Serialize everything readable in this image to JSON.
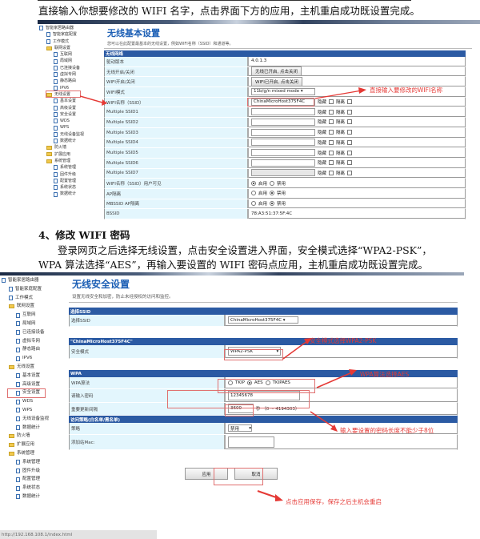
{
  "doc": {
    "line1": "直接输入你想要修改的 WIFI 名字，点击界面下方的应用，主机重启成功既设置完成。",
    "heading4": "4、修改 WIFI 密码",
    "para1": "登录网页之后选择无线设置，点击安全设置进入界面，安全模式选择“WPA2-PSK”，",
    "para2": "WPA 算法选择“AES”，再输入要设置的 WIFI 密码点应用，主机重启成功既设置完成。"
  },
  "tree": [
    "智能家居路由器",
    "智能家庭配置",
    "工作模式",
    "联网设置",
    "互联网",
    "局域网",
    "已连接设备",
    "虚拟专网",
    "静态路由",
    "IPV6",
    "无线设置",
    "基本设置",
    "高级设置",
    "安全设置",
    "WDS",
    "WPS",
    "无线设备监视",
    "数据统计",
    "防火墙",
    "扩展应用",
    "系统管理",
    "系统管理",
    "固件升级",
    "配置管理",
    "系统状态",
    "数据统计"
  ],
  "basic": {
    "title": "无线基本设置",
    "desc": "您可以在此配置最基本的无线设置，例如WIFI名称（SSID）和通道等。",
    "section": "无线网络",
    "driver_label": "驱动版本",
    "driver_value": "4.0.1.3",
    "radio_label": "无线开启/关闭",
    "radio_button": "无线已开启, 点击关闭",
    "wifi_label": "WIFI开启/关闭",
    "wifi_button": "WIFI已开启, 点击关闭",
    "mode_label": "WIFI模式",
    "mode_value": "11b/g/n mixed mode",
    "ssid_label": "WIFI名称（SSID）",
    "ssid_value": "ChinaMicroHost375F4C",
    "hide": "隐藏",
    "isolate": "隔离",
    "multi": [
      "Multiple SSID1",
      "Multiple SSID2",
      "Multiple SSID3",
      "Multiple SSID4",
      "Multiple SSID5",
      "Multiple SSID6",
      "Multiple SSID7"
    ],
    "visible_label": "WIFI名称（SSID）用户可见",
    "ap_label": "AP隔离",
    "mbssid_label": "MBSSID AP隔离",
    "enable": "启用",
    "disable": "禁用",
    "bssid_label": "BSSID",
    "bssid_value": "78:A3:51:37:5F:4C",
    "note": "直接输入要修改的WIFI名称"
  },
  "security": {
    "title": "无线安全设置",
    "desc": "设置无线安全和加密，防止未经授权的访问和监控。",
    "sec1": "选择SSID",
    "ssid_label": "选择SSID",
    "ssid_value": "ChinaMicroHost375F4C",
    "sec2": "\"ChinaMicroHost375F4C\"",
    "mode_label": "安全模式",
    "mode_value": "WPA2-PSK",
    "sec3": "WPA",
    "algo_label": "WPA算法",
    "algo_options": [
      "TKIP",
      "AES",
      "TKIPAES"
    ],
    "pwd_label": "请输入密码",
    "pwd_value": "12345678",
    "interval_label": "重要更新间隔",
    "interval_value": "3600",
    "interval_unit": "秒 （0 ~ 4194303）",
    "sec4": "访问策略(白名单/黑名单)",
    "policy_label": "策略",
    "policy_value": "禁用",
    "mac_label": "添加站Mac:",
    "apply": "应用",
    "cancel": "取消",
    "note_mode": "安全模式选择WPA2-PSK",
    "note_algo": "WPA算法选择AES",
    "note_pwd": "输入要设置的密码长度不能少于8位",
    "note_apply": "点击应用保存，保存之后主机会重启"
  },
  "statusbar": "http://192.168.108.1/index.html",
  "colors": {
    "header": "#2b5aa3",
    "label_bg": "#e3f6fd",
    "title": "#1c5fb5",
    "annotation": "#e53935"
  }
}
